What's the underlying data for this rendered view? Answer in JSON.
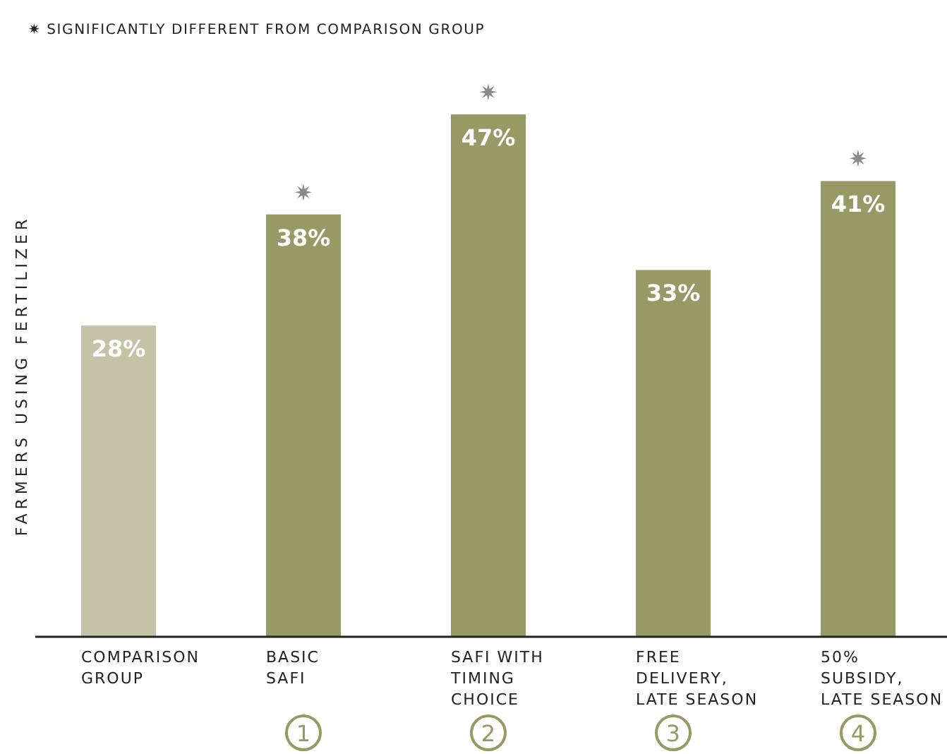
{
  "chart_data": {
    "type": "bar",
    "ylabel": "FARMERS USING FERTILIZER",
    "categories": [
      "COMPARISON\nGROUP",
      "BASIC\nSAFI",
      "SAFI WITH\nTIMING\nCHOICE",
      "FREE\nDELIVERY,\nLATE SEASON",
      "50%\nSUBSIDY,\nLATE SEASON"
    ],
    "values": [
      28,
      38,
      47,
      33,
      41
    ],
    "colors": [
      "#c4c3a8",
      "#979a64",
      "#979a64",
      "#979a64",
      "#979a64"
    ],
    "value_labels": [
      "28%",
      "38%",
      "47%",
      "33%",
      "41%"
    ],
    "annotations": [
      "✷ SIGNIFICANTLY DIFFERENT FROM COMPARISON GROUP",
      {
        "text": "✷",
        "x": "BASIC\nSAFI",
        "y": 38
      },
      {
        "text": "✷",
        "x": "SAFI WITH\nTIMING\nCHOICE",
        "y": 47
      },
      {
        "text": "✷",
        "x": "50%\nSUBSIDY,\nLATE SEASON",
        "y": 41
      },
      "1",
      "2",
      "3",
      "4"
    ]
  }
}
